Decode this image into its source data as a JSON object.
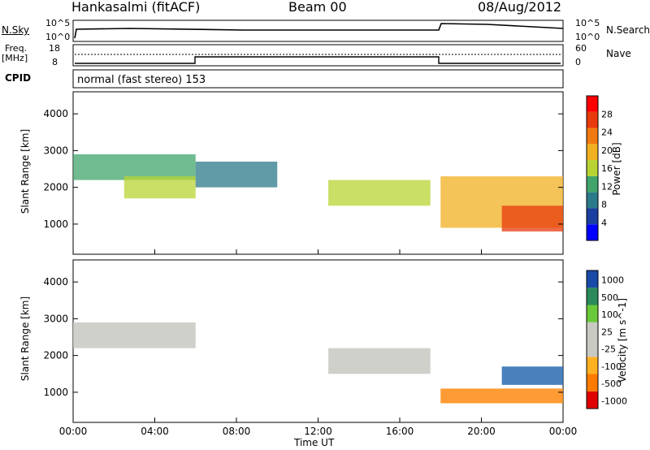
{
  "header": {
    "station": "Hankasalmi (fitACF)",
    "beam": "Beam 00",
    "date": "08/Aug/2012"
  },
  "panel_labels": {
    "nsky": "N.Sky",
    "nsearch": "N.Search",
    "freq_line1": "Freq.",
    "freq_line2": "[MHz]",
    "nave": "Nave",
    "cpid": "CPID",
    "cpid_value": "normal (fast stereo) 153"
  },
  "top_axes": {
    "nsky_left_ticks": [
      "10^5",
      "10^0"
    ],
    "nsky_right_ticks": [
      "10^5",
      "10^0"
    ],
    "freq_left_ticks": [
      "18",
      "8"
    ],
    "nave_right_ticks": [
      "60",
      "0"
    ]
  },
  "colors": {
    "power_scale": [
      "#0000ff",
      "#1b3fa0",
      "#2b7a8a",
      "#41a46b",
      "#b7d433",
      "#f0b020",
      "#f07a10",
      "#e83a0c",
      "#ff0000"
    ],
    "velocity_scale": [
      "#e00000",
      "#ff7a00",
      "#ffb020",
      "#c9c9c4",
      "#c9c9c4",
      "#6ac93a",
      "#2a8a5a",
      "#1a4aa8"
    ],
    "ground_scatter": "#c8c8c2"
  },
  "chart_data": [
    {
      "type": "heatmap",
      "title": "Power",
      "ylabel": "Slant Range [km]",
      "xlabel": "Time UT",
      "colorbar_label": "Power [dB]",
      "colorbar_ticks": [
        "28",
        "24",
        "20",
        "16",
        "12",
        "8",
        "4"
      ],
      "x_ticks": [
        "00:00",
        "04:00",
        "08:00",
        "12:00",
        "16:00",
        "20:00",
        "00:00"
      ],
      "y_ticks": [
        "4000",
        "3000",
        "2000",
        "1000"
      ],
      "xlim": [
        0,
        24
      ],
      "ylim": [
        180,
        4600
      ],
      "ylim_colorbar": [
        0,
        32
      ],
      "echo_bands": [
        {
          "t": [
            0.0,
            6.0
          ],
          "range": [
            2200,
            2900
          ],
          "power": 12
        },
        {
          "t": [
            2.5,
            6.0
          ],
          "range": [
            1700,
            2300
          ],
          "power": 16
        },
        {
          "t": [
            6.0,
            10.0
          ],
          "range": [
            2000,
            2700
          ],
          "power": 8
        },
        {
          "t": [
            12.5,
            17.5
          ],
          "range": [
            1500,
            2200
          ],
          "power": 14
        },
        {
          "t": [
            18.0,
            24.0
          ],
          "range": [
            900,
            2300
          ],
          "power": 20
        },
        {
          "t": [
            21.0,
            24.0
          ],
          "range": [
            800,
            1500
          ],
          "power": 28
        }
      ]
    },
    {
      "type": "heatmap",
      "title": "Velocity",
      "ylabel": "Slant Range [km]",
      "xlabel": "Time UT",
      "colorbar_label": "Velocity [m s^-1]",
      "colorbar_ticks": [
        "1000",
        "500",
        "100",
        "25",
        "-25",
        "-100",
        "-500",
        "-1000"
      ],
      "x_ticks": [
        "00:00",
        "04:00",
        "08:00",
        "12:00",
        "16:00",
        "20:00",
        "00:00"
      ],
      "y_ticks": [
        "4000",
        "3000",
        "2000",
        "1000"
      ],
      "xlim": [
        0,
        24
      ],
      "ylim": [
        180,
        4600
      ],
      "echo_bands": [
        {
          "t": [
            0.0,
            6.0
          ],
          "range": [
            2200,
            2900
          ],
          "velocity": 0
        },
        {
          "t": [
            12.5,
            17.5
          ],
          "range": [
            1500,
            2200
          ],
          "velocity": 0
        },
        {
          "t": [
            21.0,
            24.0
          ],
          "range": [
            1200,
            1700
          ],
          "velocity": 600
        },
        {
          "t": [
            18.0,
            24.0
          ],
          "range": [
            700,
            1100
          ],
          "velocity": -300
        }
      ]
    }
  ]
}
